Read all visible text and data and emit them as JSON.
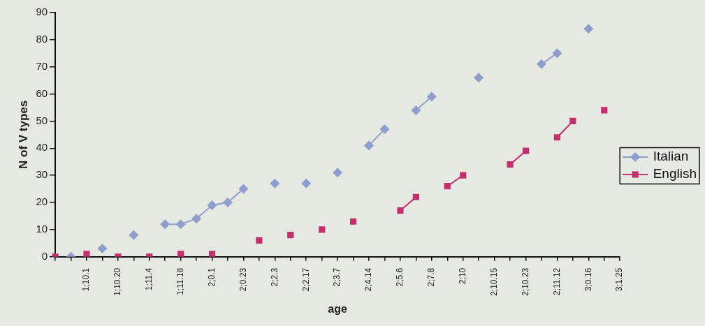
{
  "chart_data": {
    "type": "line",
    "xlabel": "age",
    "ylabel": "N of V types",
    "categories": [
      null,
      null,
      "1;10.1",
      null,
      "1;10.20",
      null,
      "1;11.4",
      null,
      "1;11.18",
      null,
      "2;0.1",
      null,
      "2;0.23",
      null,
      "2;2.3",
      null,
      "2;2.17",
      null,
      "2;3.7",
      null,
      "2;4.14",
      null,
      "2;5.6",
      null,
      "2;7.8",
      null,
      "2;10",
      null,
      "2;10.15",
      null,
      "2;10.23",
      null,
      "2;11.12",
      null,
      "3;0.16",
      null,
      "3;1.25"
    ],
    "series": [
      {
        "name": "Italian",
        "color": "#8f9fcd",
        "marker": "diamond",
        "values": [
          null,
          0,
          null,
          3,
          null,
          8,
          null,
          12,
          12,
          14,
          19,
          20,
          25,
          null,
          27,
          null,
          27,
          null,
          31,
          null,
          41,
          47,
          null,
          54,
          59,
          null,
          null,
          66,
          null,
          null,
          null,
          71,
          75,
          null,
          84,
          null,
          null
        ]
      },
      {
        "name": "English",
        "color": "#c2306d",
        "marker": "square",
        "values": [
          0,
          null,
          1,
          null,
          0,
          null,
          0,
          null,
          1,
          null,
          1,
          null,
          null,
          6,
          null,
          8,
          null,
          10,
          null,
          13,
          null,
          null,
          17,
          22,
          null,
          26,
          30,
          null,
          null,
          34,
          39,
          null,
          44,
          50,
          null,
          54,
          null
        ]
      }
    ],
    "ylim": [
      0,
      90
    ],
    "yticks": [
      0,
      10,
      20,
      30,
      40,
      50,
      60,
      70,
      80,
      90
    ],
    "grid": false,
    "legend": "right",
    "line_style": "solid"
  }
}
